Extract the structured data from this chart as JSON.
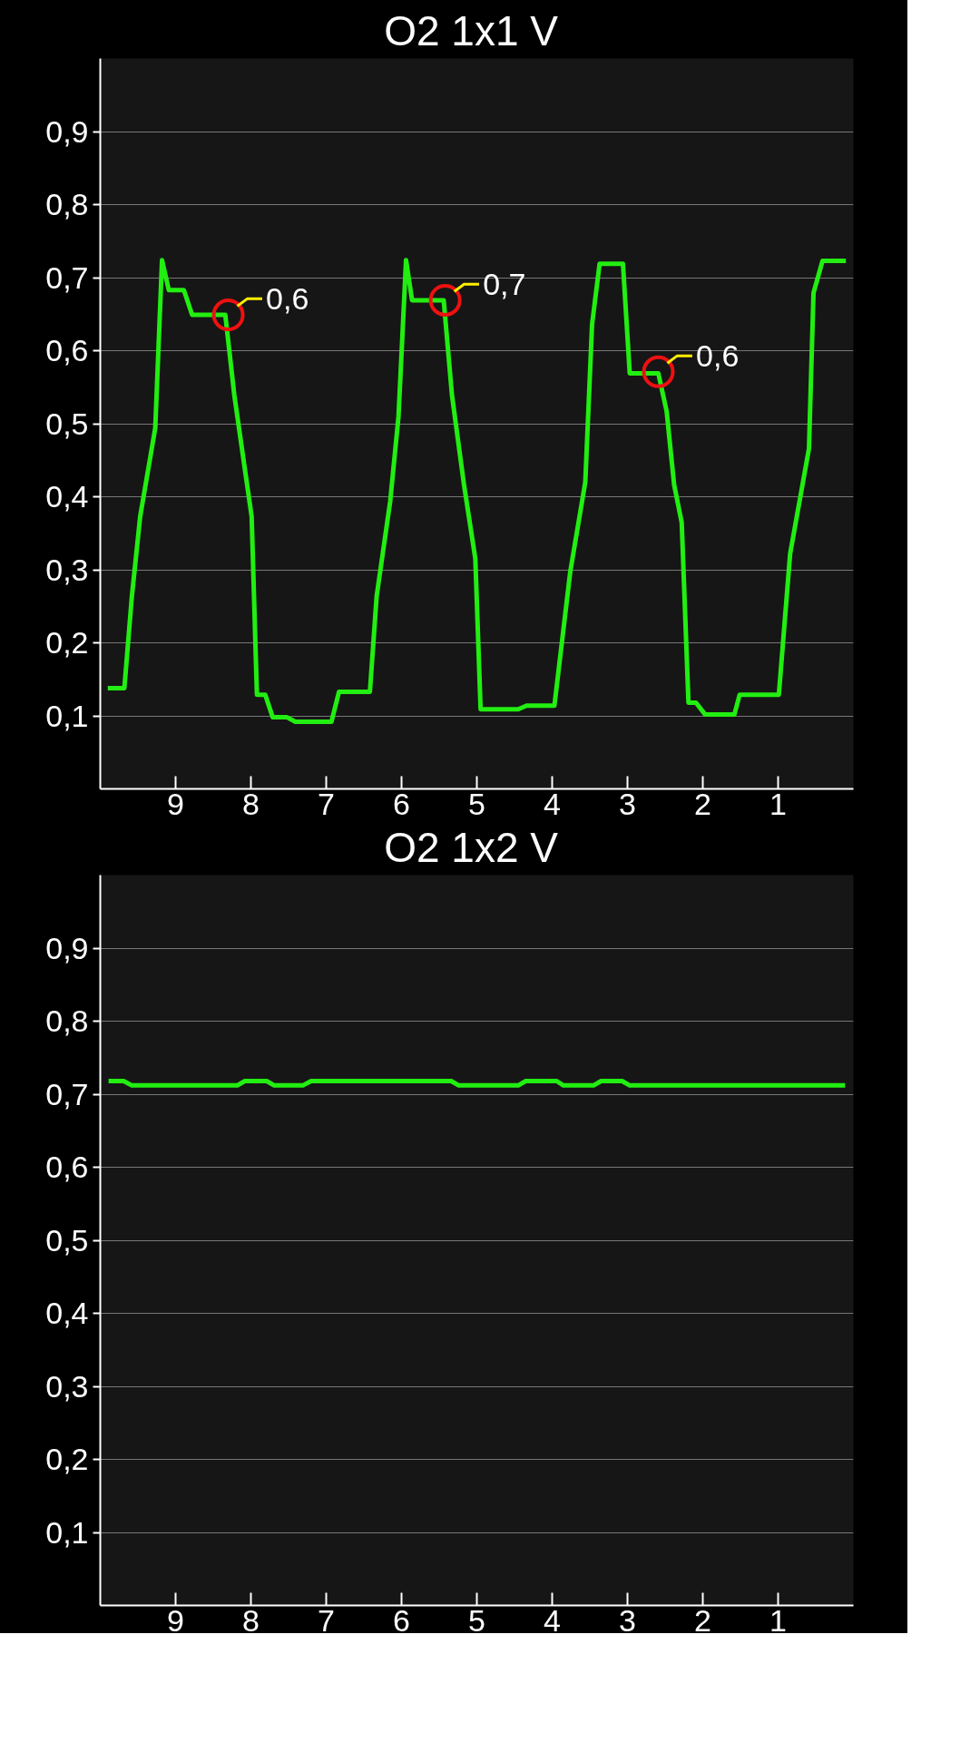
{
  "chart_data": [
    {
      "type": "line",
      "title": "O2 1x1  V",
      "xlim": [
        10,
        0
      ],
      "ylim": [
        0,
        1
      ],
      "xticks": [
        9,
        8,
        7,
        6,
        5,
        4,
        3,
        2,
        1
      ],
      "yticks": [
        {
          "value": 0.1,
          "label": "0,1"
        },
        {
          "value": 0.2,
          "label": "0,2"
        },
        {
          "value": 0.3,
          "label": "0,3"
        },
        {
          "value": 0.4,
          "label": "0,4"
        },
        {
          "value": 0.5,
          "label": "0,5"
        },
        {
          "value": 0.6,
          "label": "0,6"
        },
        {
          "value": 0.7,
          "label": "0,7"
        },
        {
          "value": 0.8,
          "label": "0,8"
        },
        {
          "value": 0.9,
          "label": "0,9"
        }
      ],
      "grid": "y",
      "series": [
        {
          "color": "#22ee11",
          "x": [
            9.9,
            9.68,
            9.58,
            9.47,
            9.27,
            9.18,
            9.09,
            8.89,
            8.78,
            8.34,
            8.22,
            8.09,
            7.99,
            7.92,
            7.81,
            7.71,
            7.52,
            7.41,
            6.93,
            6.83,
            6.42,
            6.33,
            6.15,
            6.04,
            5.94,
            5.86,
            5.8,
            5.44,
            5.33,
            5.17,
            5.02,
            4.95,
            4.45,
            4.34,
            3.97,
            3.76,
            3.56,
            3.47,
            3.37,
            3.06,
            2.97,
            2.59,
            2.48,
            2.38,
            2.28,
            2.19,
            2.09,
            1.97,
            1.58,
            1.51,
            0.99,
            0.84,
            0.59,
            0.53,
            0.41,
            0.1
          ],
          "values": [
            0.138,
            0.138,
            0.264,
            0.373,
            0.494,
            0.724,
            0.683,
            0.683,
            0.649,
            0.649,
            0.539,
            0.445,
            0.373,
            0.129,
            0.129,
            0.098,
            0.098,
            0.092,
            0.092,
            0.133,
            0.133,
            0.264,
            0.394,
            0.51,
            0.724,
            0.669,
            0.669,
            0.669,
            0.539,
            0.416,
            0.315,
            0.109,
            0.109,
            0.114,
            0.114,
            0.297,
            0.42,
            0.636,
            0.719,
            0.719,
            0.569,
            0.569,
            0.517,
            0.416,
            0.365,
            0.118,
            0.118,
            0.102,
            0.102,
            0.129,
            0.129,
            0.322,
            0.466,
            0.679,
            0.723,
            0.723
          ]
        }
      ],
      "annotations": [
        {
          "text": "0,6",
          "x": 8.3,
          "y": 0.649
        },
        {
          "text": "0,7",
          "x": 5.42,
          "y": 0.669
        },
        {
          "text": "0,6",
          "x": 2.59,
          "y": 0.571
        }
      ]
    },
    {
      "type": "line",
      "title": "O2 1x2  V",
      "xlim": [
        10,
        0
      ],
      "ylim": [
        0,
        1
      ],
      "xticks": [
        9,
        8,
        7,
        6,
        5,
        4,
        3,
        2,
        1
      ],
      "yticks": [
        {
          "value": 0.1,
          "label": "0,1"
        },
        {
          "value": 0.2,
          "label": "0,2"
        },
        {
          "value": 0.3,
          "label": "0,3"
        },
        {
          "value": 0.4,
          "label": "0,4"
        },
        {
          "value": 0.5,
          "label": "0,5"
        },
        {
          "value": 0.6,
          "label": "0,6"
        },
        {
          "value": 0.7,
          "label": "0,7"
        },
        {
          "value": 0.8,
          "label": "0,8"
        },
        {
          "value": 0.9,
          "label": "0,9"
        }
      ],
      "grid": "y",
      "series": [
        {
          "color": "#22ee11",
          "x": [
            9.89,
            9.69,
            9.58,
            8.18,
            8.08,
            7.79,
            7.69,
            7.31,
            7.2,
            5.34,
            5.24,
            4.45,
            4.35,
            3.94,
            3.85,
            3.45,
            3.35,
            3.07,
            2.97,
            0.11
          ],
          "values": [
            0.718,
            0.718,
            0.712,
            0.712,
            0.718,
            0.718,
            0.712,
            0.712,
            0.718,
            0.718,
            0.712,
            0.712,
            0.718,
            0.718,
            0.712,
            0.712,
            0.718,
            0.718,
            0.712,
            0.712
          ]
        }
      ]
    }
  ]
}
